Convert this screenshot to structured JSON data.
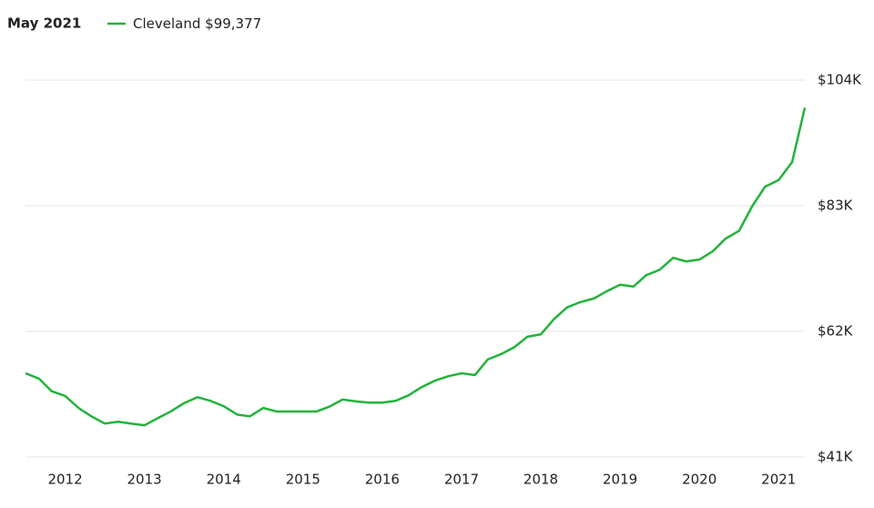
{
  "chart_data": {
    "type": "line",
    "date_label": "May 2021",
    "latest": {
      "value": 99377,
      "label": "$99,377"
    },
    "x": [
      2011.5,
      2011.67,
      2011.83,
      2012.0,
      2012.17,
      2012.33,
      2012.5,
      2012.67,
      2012.83,
      2013.0,
      2013.17,
      2013.33,
      2013.5,
      2013.67,
      2013.83,
      2014.0,
      2014.17,
      2014.33,
      2014.5,
      2014.67,
      2014.83,
      2015.0,
      2015.17,
      2015.33,
      2015.5,
      2015.67,
      2015.83,
      2016.0,
      2016.17,
      2016.33,
      2016.5,
      2016.67,
      2016.83,
      2017.0,
      2017.17,
      2017.33,
      2017.5,
      2017.67,
      2017.83,
      2018.0,
      2018.17,
      2018.33,
      2018.5,
      2018.67,
      2018.83,
      2019.0,
      2019.17,
      2019.33,
      2019.5,
      2019.67,
      2019.83,
      2020.0,
      2020.17,
      2020.33,
      2020.5,
      2020.67,
      2020.83,
      2021.0,
      2021.17,
      2021.33
    ],
    "series": [
      {
        "name": "Cleveland",
        "color": "#22b33a",
        "values": [
          55000,
          54100,
          52000,
          51200,
          49200,
          47800,
          46600,
          46900,
          46600,
          46300,
          47500,
          48600,
          50000,
          51000,
          50400,
          49500,
          48100,
          47800,
          49200,
          48600,
          48600,
          48600,
          48600,
          49400,
          50600,
          50300,
          50100,
          50100,
          50400,
          51300,
          52700,
          53800,
          54500,
          55000,
          54700,
          57300,
          58200,
          59400,
          61100,
          61500,
          64100,
          66000,
          66900,
          67500,
          68700,
          69800,
          69500,
          71400,
          72300,
          74300,
          73700,
          74000,
          75400,
          77500,
          78800,
          83000,
          86200,
          87300,
          90300,
          99377
        ]
      }
    ],
    "xlim": [
      2011.5,
      2021.33
    ],
    "xticks": [
      2012,
      2013,
      2014,
      2015,
      2016,
      2017,
      2018,
      2019,
      2020,
      2021
    ],
    "ylim": [
      41000,
      104000
    ],
    "yticks": [
      {
        "value": 41000,
        "label": "$41K"
      },
      {
        "value": 62000,
        "label": "$62K"
      },
      {
        "value": 83000,
        "label": "$83K"
      },
      {
        "value": 104000,
        "label": "$104K"
      }
    ],
    "grid": true
  }
}
